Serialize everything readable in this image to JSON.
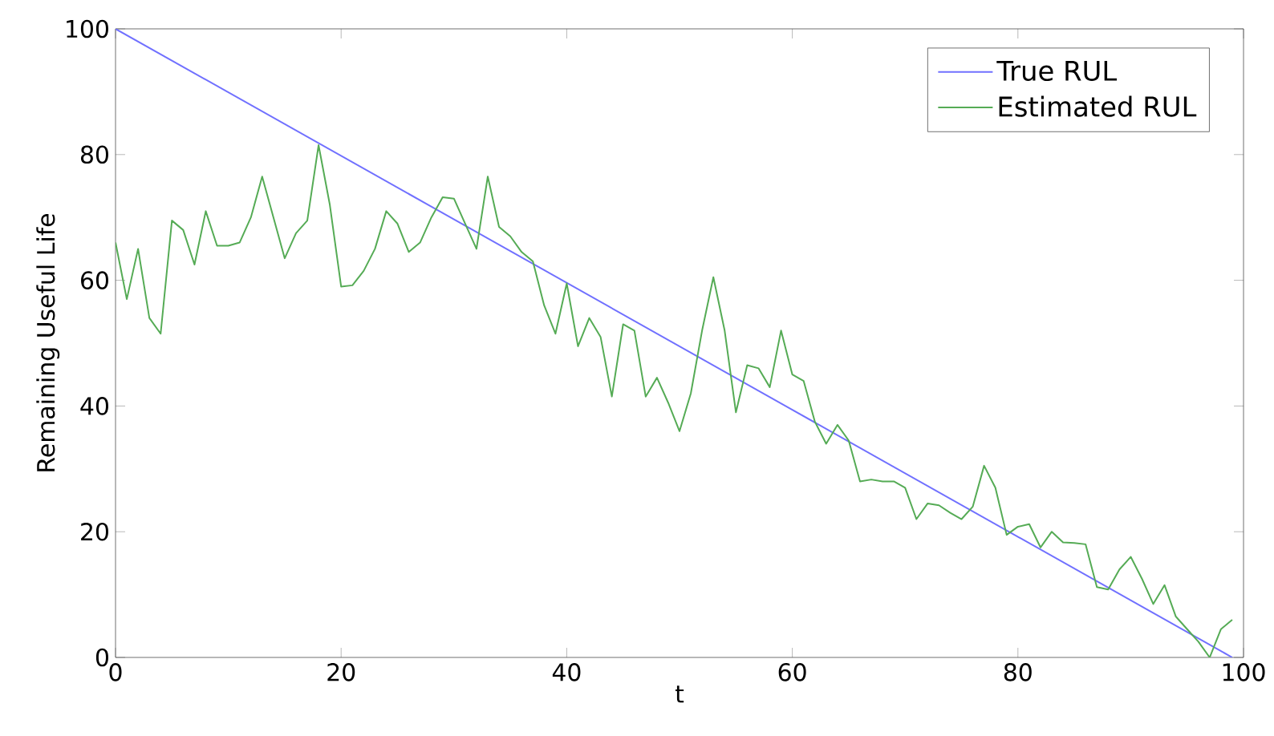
{
  "chart_data": {
    "type": "line",
    "xlabel": "t",
    "ylabel": "Remaining Useful Life",
    "xlim": [
      0,
      100
    ],
    "ylim": [
      0,
      100
    ],
    "xticks": [
      0,
      20,
      40,
      60,
      80,
      100
    ],
    "yticks": [
      0,
      20,
      40,
      60,
      80,
      100
    ],
    "legend": "top right",
    "grid": false,
    "marker": "none",
    "line_style": "solid",
    "series": [
      {
        "name": "True RUL",
        "color": "#7070ff",
        "x": [
          0,
          99
        ],
        "values": [
          100,
          0
        ]
      },
      {
        "name": "Estimated RUL",
        "color": "#55ab55",
        "x": [
          0,
          1,
          2,
          3,
          4,
          5,
          6,
          7,
          8,
          9,
          10,
          11,
          12,
          13,
          14,
          15,
          16,
          17,
          18,
          19,
          20,
          21,
          22,
          23,
          24,
          25,
          26,
          27,
          28,
          29,
          30,
          31,
          32,
          33,
          34,
          35,
          36,
          37,
          38,
          39,
          40,
          41,
          42,
          43,
          44,
          45,
          46,
          47,
          48,
          49,
          50,
          51,
          52,
          53,
          54,
          55,
          56,
          57,
          58,
          59,
          60,
          61,
          62,
          63,
          64,
          65,
          66,
          67,
          68,
          69,
          70,
          71,
          72,
          73,
          74,
          75,
          76,
          77,
          78,
          79,
          80,
          81,
          82,
          83,
          84,
          85,
          86,
          87,
          88,
          89,
          90,
          91,
          92,
          93,
          94,
          95,
          96,
          97,
          98,
          99
        ],
        "values": [
          66,
          57,
          65,
          54,
          51.5,
          69.5,
          68,
          62.5,
          71,
          65.5,
          65.5,
          66,
          70,
          76.5,
          70,
          63.5,
          67.5,
          69.5,
          81.5,
          72,
          59,
          59.2,
          61.5,
          65,
          71,
          69,
          64.5,
          66,
          70,
          73.2,
          73,
          69,
          65,
          76.5,
          68.5,
          67,
          64.5,
          63,
          56,
          51.5,
          59.5,
          49.5,
          54,
          51,
          41.5,
          53,
          52,
          41.5,
          44.5,
          40.5,
          36,
          42,
          52,
          60.5,
          52,
          39,
          46.5,
          46,
          43,
          52,
          45,
          44,
          37.5,
          34,
          37,
          34.5,
          28,
          28.3,
          28,
          28,
          27,
          22,
          24.5,
          24.2,
          23,
          22,
          24,
          30.5,
          27,
          19.5,
          20.8,
          21.2,
          17.5,
          20,
          18.3,
          18.2,
          18,
          11.2,
          10.8,
          14,
          16,
          12.5,
          8.5,
          11.5,
          6.5,
          4.5,
          2.5,
          0,
          4.5,
          6
        ]
      }
    ]
  }
}
